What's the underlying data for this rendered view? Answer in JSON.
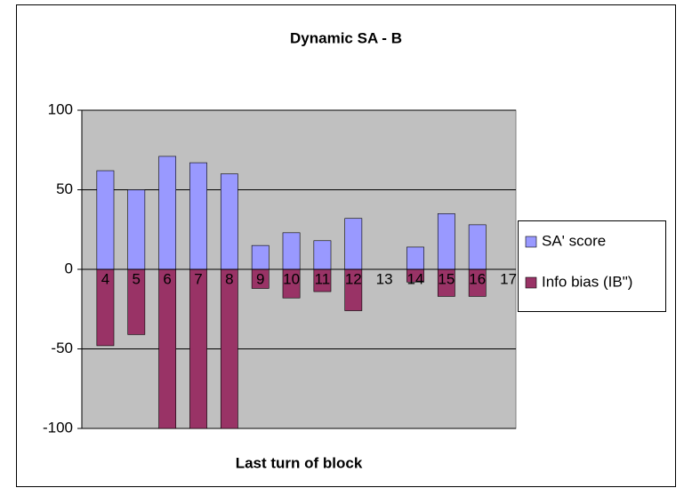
{
  "chart_data": {
    "type": "bar",
    "title": "Dynamic SA - B",
    "xlabel": "Last turn of block",
    "categories": [
      "4",
      "5",
      "6",
      "7",
      "8",
      "9",
      "10",
      "11",
      "12",
      "13",
      "14",
      "15",
      "16",
      "17"
    ],
    "series": [
      {
        "name": "SA' score",
        "color": "#9999ff",
        "values": [
          62,
          50,
          71,
          67,
          60,
          15,
          23,
          18,
          32,
          null,
          14,
          35,
          28,
          null
        ]
      },
      {
        "name": "Info bias (IB\")",
        "color": "#993366",
        "values": [
          -48,
          -41,
          -100,
          -100,
          -100,
          -12,
          -18,
          -14,
          -26,
          null,
          -8,
          -17,
          -17,
          null
        ]
      }
    ],
    "ylim": [
      -100,
      100
    ],
    "yticks": [
      -100,
      -50,
      0,
      50,
      100
    ],
    "grid": true,
    "legend": "right",
    "plot_background": "#c0c0c0"
  }
}
